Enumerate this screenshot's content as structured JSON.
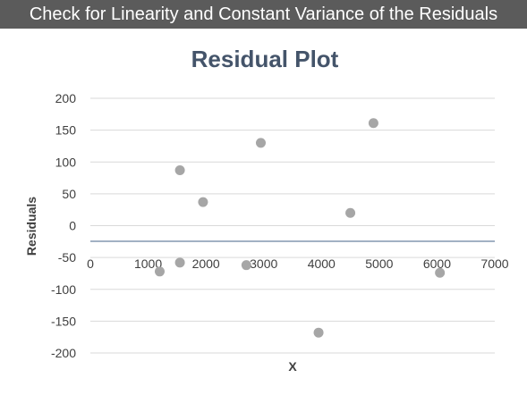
{
  "banner": {
    "text": "Check for Linearity and Constant Variance of the Residuals"
  },
  "chart_data": {
    "type": "scatter",
    "title": "Residual Plot",
    "xlabel": "X",
    "ylabel": "Residuals",
    "xlim": [
      0,
      7000
    ],
    "ylim": [
      -200,
      200
    ],
    "x_ticks": [
      0,
      1000,
      2000,
      3000,
      4000,
      5000,
      6000,
      7000
    ],
    "y_ticks": [
      200,
      150,
      100,
      50,
      0,
      -50,
      -100,
      -150,
      -200
    ],
    "grid": true,
    "legend": "none",
    "marker_color": "#a6a6a6",
    "points": [
      {
        "x": 1200,
        "y": -72
      },
      {
        "x": 1550,
        "y": 87
      },
      {
        "x": 1550,
        "y": -58
      },
      {
        "x": 1950,
        "y": 37
      },
      {
        "x": 2700,
        "y": -62
      },
      {
        "x": 2950,
        "y": 130
      },
      {
        "x": 3950,
        "y": -168
      },
      {
        "x": 4500,
        "y": 20
      },
      {
        "x": 4900,
        "y": 161
      },
      {
        "x": 6050,
        "y": -74
      }
    ]
  }
}
